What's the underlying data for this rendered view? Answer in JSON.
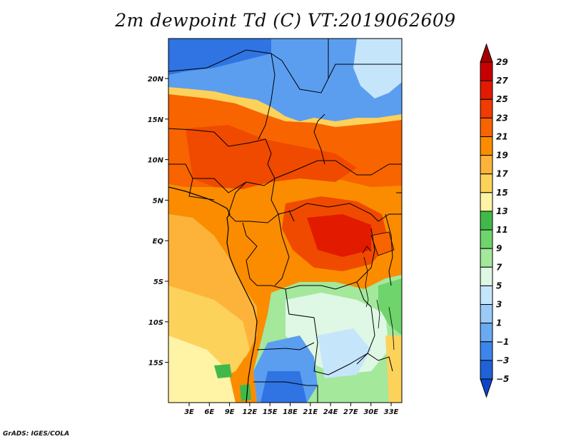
{
  "title": "2m dewpoint Td (C) VT:2019062609",
  "credit": "GrADS: IGES/COLA",
  "map": {
    "lat_ticks": [
      "20N",
      "15N",
      "10N",
      "5N",
      "EQ",
      "5S",
      "10S",
      "15S"
    ],
    "lon_ticks": [
      "3E",
      "6E",
      "9E",
      "12E",
      "15E",
      "18E",
      "21E",
      "24E",
      "27E",
      "30E",
      "33E"
    ]
  },
  "colorbar": {
    "labels": [
      "29",
      "27",
      "25",
      "23",
      "21",
      "19",
      "17",
      "15",
      "13",
      "11",
      "9",
      "7",
      "5",
      "3",
      "1",
      "−1",
      "−3",
      "−5"
    ],
    "colors": [
      "#a50000",
      "#c80000",
      "#e21a00",
      "#f03c00",
      "#f86400",
      "#fb8c00",
      "#fdb33a",
      "#fdd25b",
      "#fff3a5",
      "#41b94a",
      "#6fd46c",
      "#a3e89b",
      "#dff7e5",
      "#c5e5fb",
      "#9bcaf8",
      "#6aaaf3",
      "#3d85ea",
      "#1f62d8",
      "#0e45c8"
    ]
  }
}
